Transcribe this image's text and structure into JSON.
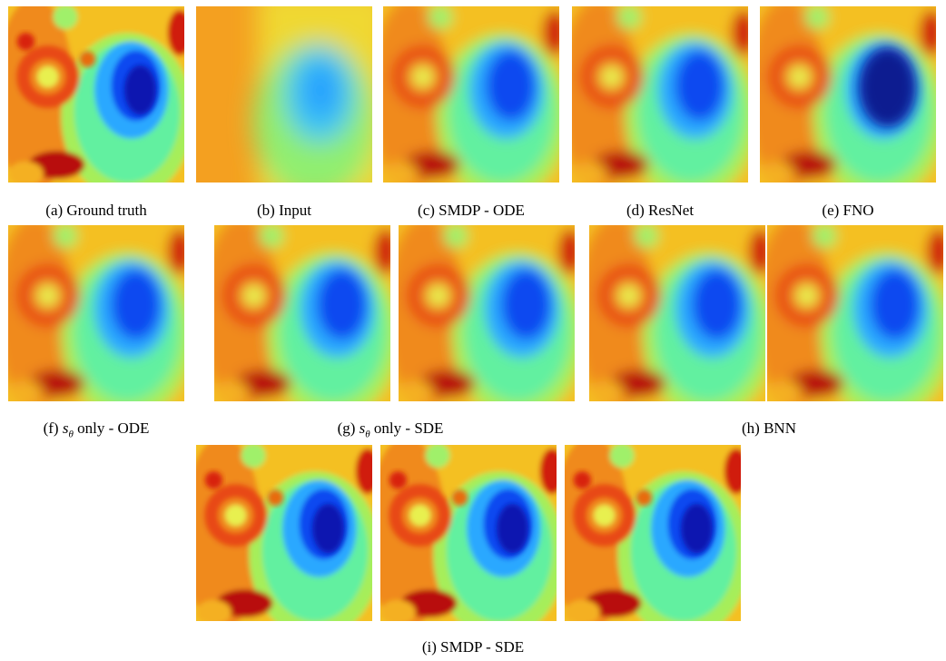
{
  "figure": {
    "captions": [
      {
        "text": "(a) Ground truth"
      },
      {
        "text": "(b) Input"
      },
      {
        "text": "(c) SMDP - ODE"
      },
      {
        "text": "(d) ResNet"
      },
      {
        "text": "(e) FNO"
      },
      {
        "label": "(f)",
        "symbol": "s",
        "subscript": "θ",
        "text": "only - ODE"
      },
      {
        "label": "(g)",
        "symbol": "s",
        "subscript": "θ",
        "text": "only - SDE"
      },
      {
        "text": "(h) BNN"
      },
      {
        "text": "(i) SMDP - SDE"
      }
    ]
  }
}
